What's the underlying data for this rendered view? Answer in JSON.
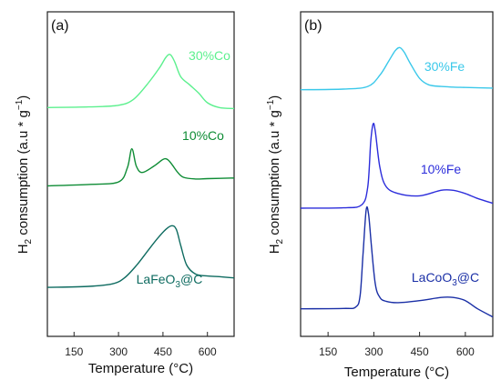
{
  "chart_data": [
    {
      "type": "line",
      "panel_label": "(a)",
      "xlabel": "Temperature (°C)",
      "ylabel_parts": [
        "H",
        "2",
        " consumption (a.u * g",
        "−1",
        ")"
      ],
      "xlim": [
        60,
        690
      ],
      "xticks": [
        150,
        300,
        450,
        600
      ],
      "xtick_labels": [
        "150",
        "300",
        "450",
        "600"
      ],
      "ylim": [
        0,
        1
      ],
      "series": [
        {
          "name": "LaFeO3@C",
          "label_parts": [
            "LaFeO",
            "3",
            "@C"
          ],
          "color": "#0e6b60",
          "x": [
            60,
            200,
            280,
            320,
            360,
            400,
            430,
            460,
            480,
            495,
            510,
            530,
            560,
            600,
            640,
            690
          ],
          "y": [
            0.151,
            0.154,
            0.162,
            0.18,
            0.218,
            0.265,
            0.3,
            0.33,
            0.341,
            0.33,
            0.28,
            0.22,
            0.192,
            0.186,
            0.184,
            0.18
          ]
        },
        {
          "name": "10%Co",
          "color": "#0e8c35",
          "x": [
            60,
            200,
            300,
            330,
            345,
            360,
            380,
            420,
            450,
            465,
            480,
            500,
            520,
            560,
            600,
            690
          ],
          "y": [
            0.464,
            0.468,
            0.476,
            0.52,
            0.578,
            0.525,
            0.505,
            0.525,
            0.545,
            0.545,
            0.53,
            0.505,
            0.49,
            0.485,
            0.486,
            0.488
          ]
        },
        {
          "name": "30%Co",
          "color": "#5cf08e",
          "x": [
            60,
            200,
            300,
            350,
            400,
            440,
            460,
            475,
            490,
            510,
            540,
            570,
            600,
            640,
            690
          ],
          "y": [
            0.705,
            0.707,
            0.712,
            0.73,
            0.78,
            0.83,
            0.86,
            0.868,
            0.845,
            0.8,
            0.775,
            0.75,
            0.72,
            0.705,
            0.702
          ]
        }
      ]
    },
    {
      "type": "line",
      "panel_label": "(b)",
      "xlabel": "Temperature (°C)",
      "ylabel_parts": [
        "H",
        "2",
        " consumption (a.u * g",
        "−1",
        ")"
      ],
      "xlim": [
        60,
        690
      ],
      "xticks": [
        150,
        300,
        450,
        600
      ],
      "xtick_labels": [
        "150",
        "300",
        "450",
        "600"
      ],
      "ylim": [
        0,
        1
      ],
      "series": [
        {
          "name": "LaCoO3@C",
          "label_parts": [
            "LaCoO",
            "3",
            "@C"
          ],
          "color": "#1a2fa6",
          "x": [
            60,
            200,
            240,
            255,
            265,
            275,
            283,
            292,
            305,
            320,
            340,
            380,
            450,
            520,
            560,
            600,
            640,
            690
          ],
          "y": [
            0.085,
            0.086,
            0.09,
            0.125,
            0.26,
            0.39,
            0.375,
            0.28,
            0.16,
            0.12,
            0.108,
            0.104,
            0.11,
            0.12,
            0.12,
            0.11,
            0.085,
            0.06
          ]
        },
        {
          "name": "10%Fe",
          "color": "#2c2ddb",
          "x": [
            60,
            200,
            260,
            280,
            290,
            298,
            305,
            320,
            340,
            380,
            450,
            520,
            560,
            600,
            640,
            690
          ],
          "y": [
            0.395,
            0.396,
            0.405,
            0.46,
            0.6,
            0.655,
            0.63,
            0.52,
            0.462,
            0.44,
            0.433,
            0.45,
            0.45,
            0.44,
            0.425,
            0.41
          ]
        },
        {
          "name": "30%Fe",
          "color": "#3ac8ea",
          "x": [
            60,
            200,
            280,
            320,
            350,
            370,
            385,
            400,
            420,
            450,
            480,
            520,
            560,
            600,
            690
          ],
          "y": [
            0.76,
            0.762,
            0.77,
            0.805,
            0.85,
            0.88,
            0.89,
            0.875,
            0.84,
            0.795,
            0.775,
            0.77,
            0.768,
            0.767,
            0.765
          ]
        }
      ]
    }
  ]
}
